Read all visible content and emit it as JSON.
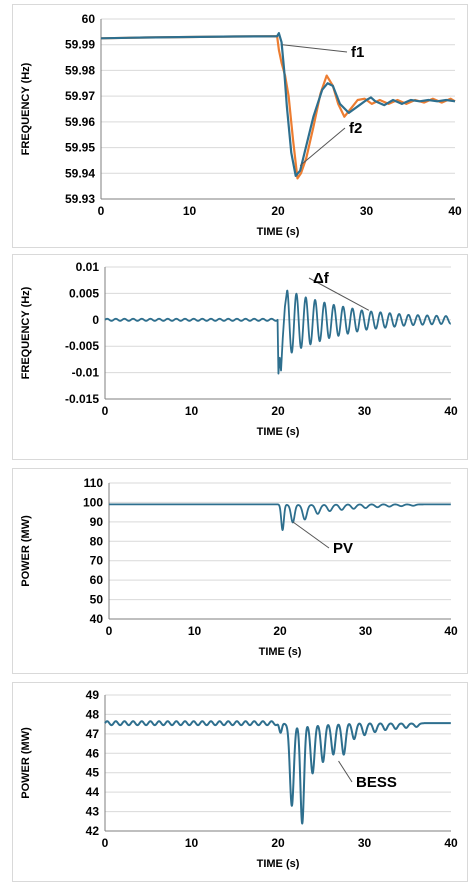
{
  "colors": {
    "f1": "#2e6f8e",
    "f2": "#ed7d31",
    "single": "#2e6f8e",
    "grid": "#d9d9d9",
    "axis": "#7f7f7f",
    "leader": "#555555"
  },
  "chart_data": [
    {
      "type": "line",
      "xlabel": "TIME (s)",
      "ylabel": "FREQUENCY (Hz)",
      "xlim": [
        0,
        40
      ],
      "ylim": [
        59.93,
        60
      ],
      "xticks": [
        "0",
        "10",
        "20",
        "30",
        "40"
      ],
      "yticks": [
        "59.93",
        "59.94",
        "59.95",
        "59.96",
        "59.97",
        "59.98",
        "59.99",
        "60"
      ],
      "grid": "horizontal",
      "series": [
        {
          "name": "f1",
          "x": [
            0,
            5,
            10,
            15,
            19.9,
            20.1,
            20.4,
            20.7,
            21.0,
            21.5,
            22.0,
            22.5,
            23.0,
            24.0,
            25.0,
            25.6,
            26.2,
            27.0,
            28.0,
            29.0,
            30.0,
            30.5,
            31.0,
            32.0,
            33.0,
            34.0,
            35.0,
            36.0,
            37.0,
            38.0,
            39.0,
            40.0
          ],
          "y": [
            59.9925,
            59.9928,
            59.993,
            59.9932,
            59.9933,
            59.9945,
            59.991,
            59.98,
            59.966,
            59.948,
            59.939,
            59.941,
            59.948,
            59.962,
            59.9725,
            59.975,
            59.974,
            59.967,
            59.9635,
            59.966,
            59.9685,
            59.9695,
            59.968,
            59.9665,
            59.9685,
            59.967,
            59.9685,
            59.968,
            59.9685,
            59.968,
            59.9685,
            59.968
          ]
        },
        {
          "name": "f2",
          "x": [
            0,
            5,
            10,
            15,
            19.9,
            20.1,
            20.4,
            20.8,
            21.2,
            21.7,
            22.2,
            22.6,
            23.2,
            24.0,
            24.8,
            25.5,
            26.2,
            26.8,
            27.5,
            28.2,
            29.0,
            29.8,
            30.6,
            31.5,
            32.5,
            33.5,
            34.5,
            35.5,
            36.5,
            37.5,
            38.5,
            39.5,
            40.0
          ],
          "y": [
            59.9925,
            59.9928,
            59.993,
            59.9932,
            59.9933,
            59.988,
            59.983,
            59.978,
            59.97,
            59.953,
            59.938,
            59.94,
            59.946,
            59.958,
            59.971,
            59.978,
            59.974,
            59.967,
            59.962,
            59.965,
            59.9685,
            59.969,
            59.967,
            59.9685,
            59.967,
            59.9685,
            59.967,
            59.9685,
            59.9675,
            59.969,
            59.9675,
            59.969,
            59.968
          ]
        }
      ],
      "annotations": [
        {
          "text": "f1",
          "x": 20.5,
          "y": 59.99
        },
        {
          "text": "f2",
          "x": 22.5,
          "y": 59.943
        }
      ]
    },
    {
      "type": "line",
      "xlabel": "TIME (s)",
      "ylabel": "FREQUENCY (Hz)",
      "xlim": [
        0,
        40
      ],
      "ylim": [
        -0.015,
        0.01
      ],
      "xticks": [
        "0",
        "10",
        "20",
        "30",
        "40"
      ],
      "yticks": [
        "-0.015",
        "-0.01",
        "-0.005",
        "0",
        "0.005",
        "0.01"
      ],
      "grid": "horizontal",
      "baseline_ripple": {
        "x_range": [
          0,
          20
        ],
        "amplitude": 0.0002,
        "period_s": 1.0
      },
      "oscillation": {
        "start": 20.15,
        "end": 40,
        "period_s": 1.08,
        "envelope_x": [
          20.15,
          21,
          23,
          26,
          30,
          35,
          40
        ],
        "envelope": [
          0.0092,
          0.0062,
          0.0047,
          0.0032,
          0.0018,
          0.001,
          0.0007
        ]
      },
      "series": [
        {
          "name": "Δf",
          "x": [
            0,
            19.95,
            20.05,
            20.2,
            20.35,
            20.55,
            20.8,
            21.05
          ],
          "y": [
            0,
            0,
            -0.0102,
            -0.0072,
            -0.0096,
            -0.0035,
            0.0025,
            0.0055
          ]
        }
      ],
      "annotations": [
        {
          "text": "Δf",
          "x": 30.5,
          "y": 0.0018
        }
      ]
    },
    {
      "type": "line",
      "xlabel": "TIME (s)",
      "ylabel": "POWER (MW)",
      "xlim": [
        0,
        40
      ],
      "ylim": [
        40,
        110
      ],
      "xticks": [
        "0",
        "10",
        "20",
        "30",
        "40"
      ],
      "yticks": [
        "40",
        "50",
        "60",
        "70",
        "80",
        "90",
        "100",
        "110"
      ],
      "grid": "horizontal",
      "level": 99,
      "dips": [
        {
          "x": 20.3,
          "depth": 13.5,
          "width": 0.22
        },
        {
          "x": 21.5,
          "depth": 9.5,
          "width": 0.3
        },
        {
          "x": 22.9,
          "depth": 8,
          "width": 0.35
        },
        {
          "x": 24.4,
          "depth": 5,
          "width": 0.38
        },
        {
          "x": 25.8,
          "depth": 3.5,
          "width": 0.38
        },
        {
          "x": 27.2,
          "depth": 2.8,
          "width": 0.38
        },
        {
          "x": 28.6,
          "depth": 2.2,
          "width": 0.38
        },
        {
          "x": 30.0,
          "depth": 1.8,
          "width": 0.38
        },
        {
          "x": 31.4,
          "depth": 1.4,
          "width": 0.38
        },
        {
          "x": 32.8,
          "depth": 1.1,
          "width": 0.38
        },
        {
          "x": 34.2,
          "depth": 0.9,
          "width": 0.38
        },
        {
          "x": 35.6,
          "depth": 0.7,
          "width": 0.38
        }
      ],
      "series": [
        {
          "name": "PV"
        }
      ],
      "annotations": [
        {
          "text": "PV",
          "x": 21.5,
          "y": 90
        }
      ]
    },
    {
      "type": "line",
      "xlabel": "TIME (s)",
      "ylabel": "POWER (MW)",
      "xlim": [
        0,
        40
      ],
      "ylim": [
        42,
        49
      ],
      "xticks": [
        "0",
        "10",
        "20",
        "30",
        "40"
      ],
      "yticks": [
        "42",
        "43",
        "44",
        "45",
        "46",
        "47",
        "48",
        "49"
      ],
      "grid": "horizontal",
      "level": 47.55,
      "ripple": {
        "x_range": [
          0,
          20
        ],
        "amplitude": 0.1,
        "period_s": 1.0
      },
      "dips": [
        {
          "x": 20.3,
          "depth": 0.55,
          "width": 0.22
        },
        {
          "x": 21.6,
          "depth": 4.3,
          "width": 0.32
        },
        {
          "x": 22.8,
          "depth": 5.2,
          "width": 0.3
        },
        {
          "x": 24.0,
          "depth": 2.6,
          "width": 0.32
        },
        {
          "x": 25.2,
          "depth": 2.0,
          "width": 0.32
        },
        {
          "x": 26.4,
          "depth": 1.6,
          "width": 0.32
        },
        {
          "x": 27.6,
          "depth": 1.6,
          "width": 0.32
        },
        {
          "x": 28.8,
          "depth": 0.8,
          "width": 0.32
        },
        {
          "x": 30.0,
          "depth": 0.6,
          "width": 0.32
        },
        {
          "x": 31.2,
          "depth": 0.45,
          "width": 0.32
        },
        {
          "x": 32.4,
          "depth": 0.35,
          "width": 0.32
        },
        {
          "x": 33.6,
          "depth": 0.3,
          "width": 0.32
        },
        {
          "x": 34.8,
          "depth": 0.25,
          "width": 0.32
        },
        {
          "x": 36.0,
          "depth": 0.2,
          "width": 0.32
        }
      ],
      "series": [
        {
          "name": "BESS"
        }
      ],
      "annotations": [
        {
          "text": "BESS",
          "x": 27.0,
          "y": 45.6
        }
      ]
    }
  ]
}
